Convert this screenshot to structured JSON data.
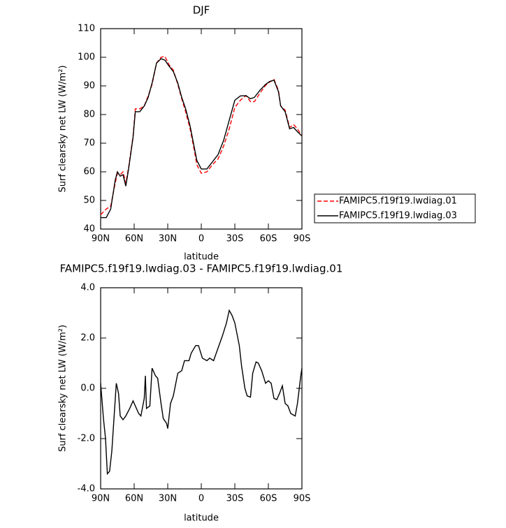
{
  "chart_data": [
    {
      "type": "line",
      "title": "DJF",
      "ylabel": "Surf clearsky net LW (W/m²)",
      "xlabel": "latitude",
      "x": [
        90,
        85,
        81,
        77,
        75,
        72.5,
        70,
        67.5,
        65,
        61,
        59,
        55,
        51,
        47.5,
        44,
        40,
        36,
        32.5,
        29,
        25,
        21,
        17.5,
        14,
        10,
        6,
        4,
        0,
        -5,
        -10,
        -15,
        -20,
        -25,
        -30,
        -35,
        -40,
        -44,
        -47.5,
        -52.5,
        -57.5,
        -61,
        -65,
        -69,
        -71,
        -75,
        -79,
        -82.5,
        -86,
        -90
      ],
      "series": [
        {
          "name": "FAMIPC5.f19f19.lwdiag.01",
          "color": "#ff0000",
          "linestyle": "dashed",
          "values": [
            45,
            47,
            48,
            56,
            59.5,
            59,
            60,
            56,
            61.5,
            72.5,
            82,
            82,
            83,
            86.5,
            90.5,
            98,
            100,
            100.3,
            97.5,
            95.5,
            90.5,
            85.5,
            81,
            75,
            67,
            62.5,
            59.5,
            60,
            62.5,
            64.5,
            69,
            75,
            82.5,
            85,
            86.6,
            84.5,
            84.5,
            87.5,
            90.2,
            91.3,
            92.3,
            88.5,
            83,
            81.5,
            75.5,
            76.5,
            75,
            72.5
          ]
        },
        {
          "name": "FAMIPC5.f19f19.lwdiag.03",
          "color": "#000000",
          "linestyle": "solid",
          "values": [
            44,
            44,
            47,
            57,
            60,
            58.5,
            59,
            55,
            61,
            72,
            81,
            81,
            83,
            86,
            91,
            98,
            99.5,
            99,
            97,
            95,
            91,
            86,
            82,
            76,
            68,
            64,
            61,
            61,
            63.5,
            66,
            71,
            78,
            85,
            86.5,
            86.6,
            85.5,
            86,
            88.5,
            90.5,
            91.5,
            92,
            88,
            83,
            81,
            75,
            75.5,
            74,
            72.5
          ]
        }
      ],
      "xlim": [
        90,
        -90
      ],
      "xticks": [
        {
          "value": 90,
          "label": "90N"
        },
        {
          "value": 60,
          "label": "60N"
        },
        {
          "value": 30,
          "label": "30N"
        },
        0,
        {
          "value": -30,
          "label": "30S"
        },
        {
          "value": -60,
          "label": "60S"
        },
        {
          "value": -90,
          "label": "90S"
        }
      ],
      "ylim": [
        40,
        110
      ],
      "yticks": [
        40,
        50,
        60,
        70,
        80,
        90,
        100,
        110
      ],
      "legend": "right"
    },
    {
      "type": "line",
      "title": "FAMIPC5.f19f19.lwdiag.03 - FAMIPC5.f19f19.lwdiag.01",
      "ylabel": "Surf clearsky net LW (W/m²)",
      "xlabel": "latitude",
      "x": [
        90,
        87.5,
        85.6,
        84,
        82,
        80,
        76,
        74,
        72.5,
        70,
        67.5,
        64,
        61,
        59,
        56,
        54,
        51,
        50,
        49,
        46,
        44,
        41,
        39,
        36,
        34,
        31,
        30,
        27.5,
        25,
        21,
        17.5,
        15,
        11,
        9,
        5,
        2.5,
        -1,
        -5,
        -7.5,
        -11,
        -15,
        -19,
        -22.5,
        -25,
        -27.5,
        -30,
        -34,
        -36,
        -39,
        -41,
        -44,
        -46,
        -49,
        -51,
        -54,
        -57.5,
        -60,
        -62.5,
        -65,
        -67.5,
        -70,
        -72.5,
        -75,
        -77.5,
        -80,
        -84,
        -86,
        -89,
        -90
      ],
      "color": "#000000",
      "values": [
        0.2,
        -1.2,
        -2,
        -3.4,
        -3.3,
        -2.5,
        0.2,
        -0.2,
        -1.1,
        -1.25,
        -1.1,
        -0.8,
        -0.5,
        -0.7,
        -1.0,
        -1.1,
        -0.4,
        0.5,
        -0.8,
        -0.7,
        0.8,
        0.5,
        0.4,
        -0.6,
        -1.2,
        -1.4,
        -1.6,
        -0.6,
        -0.3,
        0.6,
        0.7,
        1.1,
        1.1,
        1.4,
        1.7,
        1.7,
        1.2,
        1.1,
        1.2,
        1.1,
        1.6,
        2.1,
        2.6,
        3.1,
        2.9,
        2.6,
        1.7,
        0.9,
        0,
        -0.3,
        -0.35,
        0.6,
        1.05,
        1.0,
        0.7,
        0.2,
        0.3,
        0.2,
        -0.4,
        -0.45,
        -0.2,
        0.1,
        -0.6,
        -0.7,
        -1.0,
        -1.1,
        -0.6,
        0.5,
        0.8
      ],
      "xlim": [
        90,
        -90
      ],
      "xticks": [
        {
          "value": 90,
          "label": "90N"
        },
        {
          "value": 60,
          "label": "60N"
        },
        {
          "value": 30,
          "label": "30N"
        },
        0,
        {
          "value": -30,
          "label": "30S"
        },
        {
          "value": -60,
          "label": "60S"
        },
        {
          "value": -90,
          "label": "90S"
        }
      ],
      "ylim": [
        -4,
        4
      ],
      "yticks": [
        {
          "value": -4,
          "label": "-4.0"
        },
        {
          "value": -2,
          "label": "-2.0"
        },
        {
          "value": 0,
          "label": "0.0"
        },
        {
          "value": 2,
          "label": "2.0"
        },
        {
          "value": 4,
          "label": "4.0"
        }
      ]
    }
  ]
}
